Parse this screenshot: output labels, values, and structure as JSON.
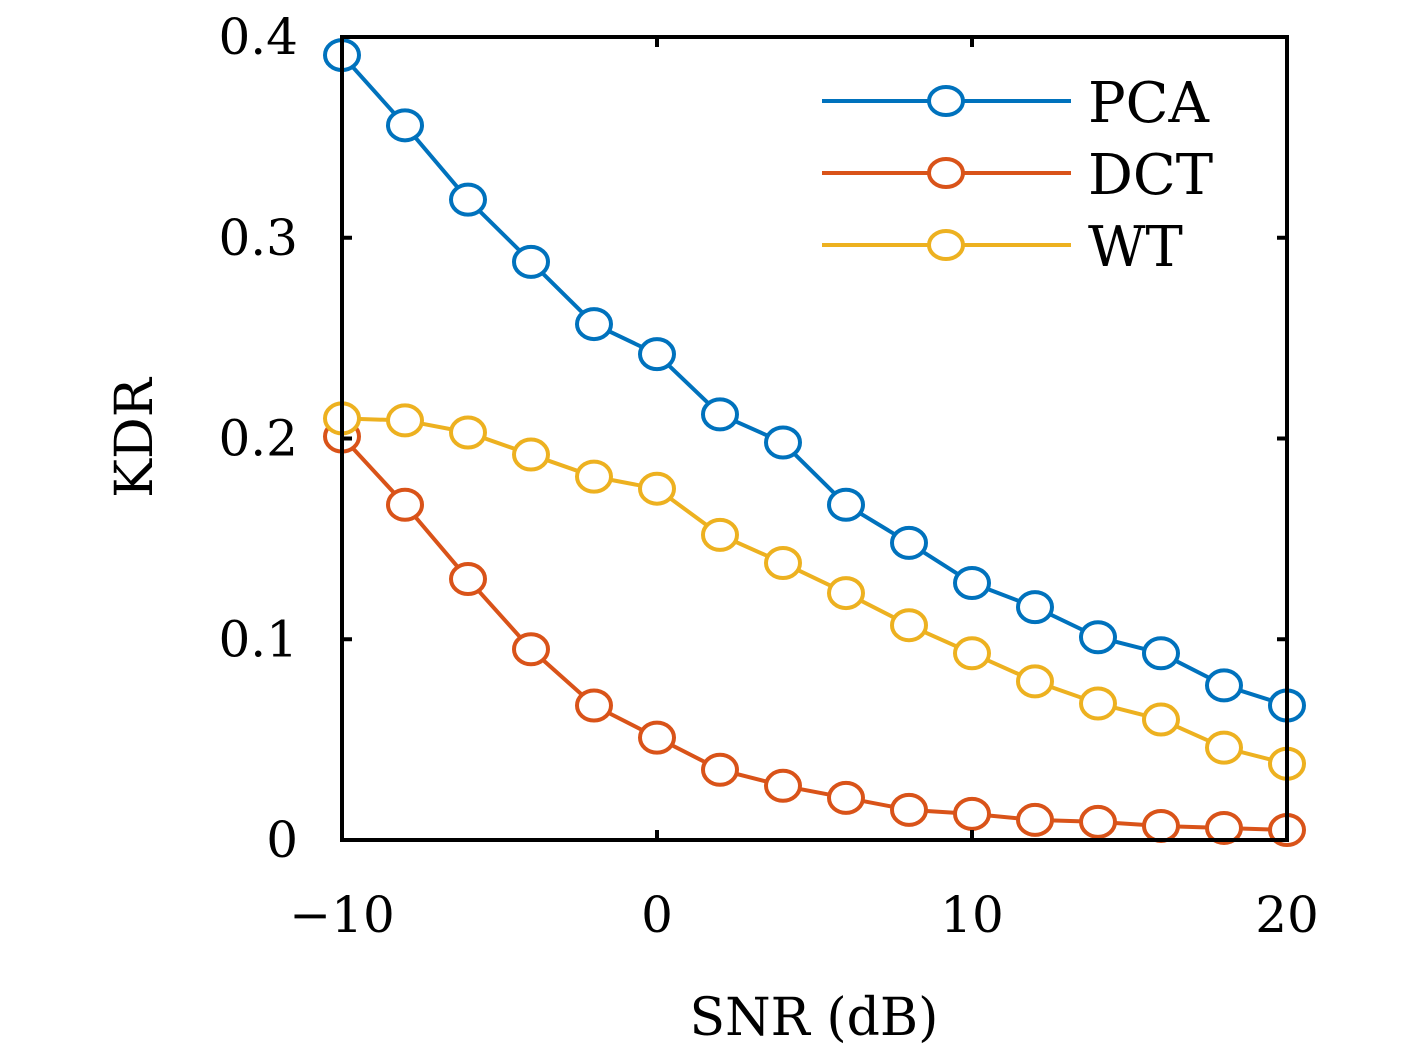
{
  "chart_data": {
    "type": "line",
    "title": "",
    "xlabel": "SNR (dB)",
    "ylabel": "KDR",
    "xlim": [
      -10,
      20
    ],
    "ylim": [
      0,
      0.4
    ],
    "xticks": [
      -10,
      0,
      10,
      20
    ],
    "xtick_labels": [
      "−10",
      "0",
      "10",
      "20"
    ],
    "yticks": [
      0,
      0.1,
      0.2,
      0.3,
      0.4
    ],
    "ytick_labels": [
      "0",
      "0.1",
      "0.2",
      "0.3",
      "0.4"
    ],
    "grid": false,
    "legend_position": "top-right",
    "x": [
      -10,
      -8,
      -6,
      -4,
      -2,
      0,
      2,
      4,
      6,
      8,
      10,
      12,
      14,
      16,
      18,
      20
    ],
    "series": [
      {
        "name": "PCA",
        "color": "#0072BD",
        "marker": "circle-open",
        "values": [
          0.391,
          0.356,
          0.319,
          0.288,
          0.257,
          0.242,
          0.212,
          0.198,
          0.167,
          0.148,
          0.128,
          0.116,
          0.101,
          0.093,
          0.077,
          0.067
        ]
      },
      {
        "name": "DCT",
        "color": "#D95319",
        "marker": "circle-open",
        "values": [
          0.201,
          0.167,
          0.13,
          0.095,
          0.067,
          0.051,
          0.035,
          0.027,
          0.021,
          0.015,
          0.013,
          0.01,
          0.009,
          0.007,
          0.006,
          0.005
        ]
      },
      {
        "name": "WT",
        "color": "#EDB120",
        "marker": "circle-open",
        "values": [
          0.21,
          0.209,
          0.203,
          0.192,
          0.181,
          0.175,
          0.152,
          0.138,
          0.123,
          0.107,
          0.093,
          0.079,
          0.068,
          0.06,
          0.046,
          0.038
        ]
      }
    ]
  }
}
